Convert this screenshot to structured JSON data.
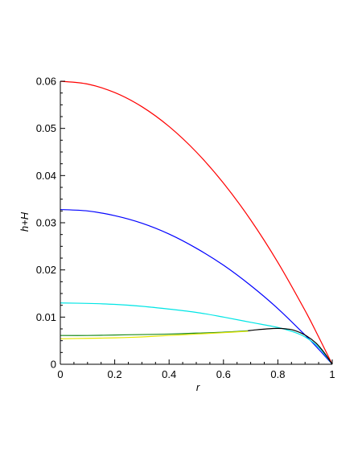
{
  "chart_data": {
    "type": "line",
    "title": "",
    "xlabel": "r",
    "ylabel": "h+H",
    "xlim": [
      0,
      1
    ],
    "ylim": [
      0,
      0.06
    ],
    "x_ticks": [
      0,
      0.2,
      0.4,
      0.6,
      0.8,
      1
    ],
    "x_tick_labels": [
      "0",
      "0.2",
      "0.4",
      "0.6",
      "0.8",
      "1"
    ],
    "y_ticks": [
      0,
      0.01,
      0.02,
      0.03,
      0.04,
      0.05,
      0.06
    ],
    "y_tick_labels": [
      "0",
      "0.01",
      "0.02",
      "0.03",
      "0.04",
      "0.05",
      "0.06"
    ],
    "grid": false,
    "legend": "none",
    "series": [
      {
        "color": "#ff0000",
        "x": [
          0,
          0.1,
          0.2,
          0.3,
          0.4,
          0.5,
          0.6,
          0.7,
          0.8,
          0.9,
          0.95,
          1.0
        ],
        "y": [
          0.06,
          0.0594,
          0.0576,
          0.0546,
          0.0504,
          0.045,
          0.0384,
          0.0306,
          0.0216,
          0.0114,
          0.0058,
          0.0
        ]
      },
      {
        "color": "#0000ff",
        "x": [
          0,
          0.1,
          0.2,
          0.3,
          0.4,
          0.5,
          0.6,
          0.7,
          0.8,
          0.9,
          0.95,
          1.0
        ],
        "y": [
          0.0328,
          0.0325,
          0.0315,
          0.0299,
          0.0276,
          0.0246,
          0.021,
          0.0167,
          0.0118,
          0.0062,
          0.0032,
          0.0
        ]
      },
      {
        "color": "#00e5e5",
        "x": [
          0,
          0.1,
          0.2,
          0.3,
          0.4,
          0.5,
          0.6,
          0.7,
          0.8,
          0.85,
          0.9,
          0.95,
          1.0
        ],
        "y": [
          0.013,
          0.0129,
          0.0127,
          0.0123,
          0.0117,
          0.011,
          0.01,
          0.0089,
          0.0078,
          0.007,
          0.0058,
          0.0036,
          0.0
        ]
      },
      {
        "color": "#1a8a1a",
        "x": [
          0,
          0.1,
          0.2,
          0.3,
          0.4,
          0.5,
          0.6,
          0.69
        ],
        "y": [
          0.0061,
          0.0061,
          0.0062,
          0.0063,
          0.0064,
          0.0066,
          0.0068,
          0.0071
        ]
      },
      {
        "color": "#e5e500",
        "x": [
          0,
          0.1,
          0.2,
          0.3,
          0.4,
          0.5,
          0.6,
          0.69
        ],
        "y": [
          0.0054,
          0.0055,
          0.0056,
          0.0058,
          0.0061,
          0.0064,
          0.0067,
          0.007
        ]
      },
      {
        "color": "#000000",
        "x": [
          0.69,
          0.72,
          0.76,
          0.8,
          0.83,
          0.86,
          0.9,
          0.94,
          0.97,
          1.0
        ],
        "y": [
          0.0071,
          0.0073,
          0.0075,
          0.0076,
          0.0075,
          0.0072,
          0.0062,
          0.0045,
          0.0025,
          0.0
        ]
      }
    ]
  }
}
